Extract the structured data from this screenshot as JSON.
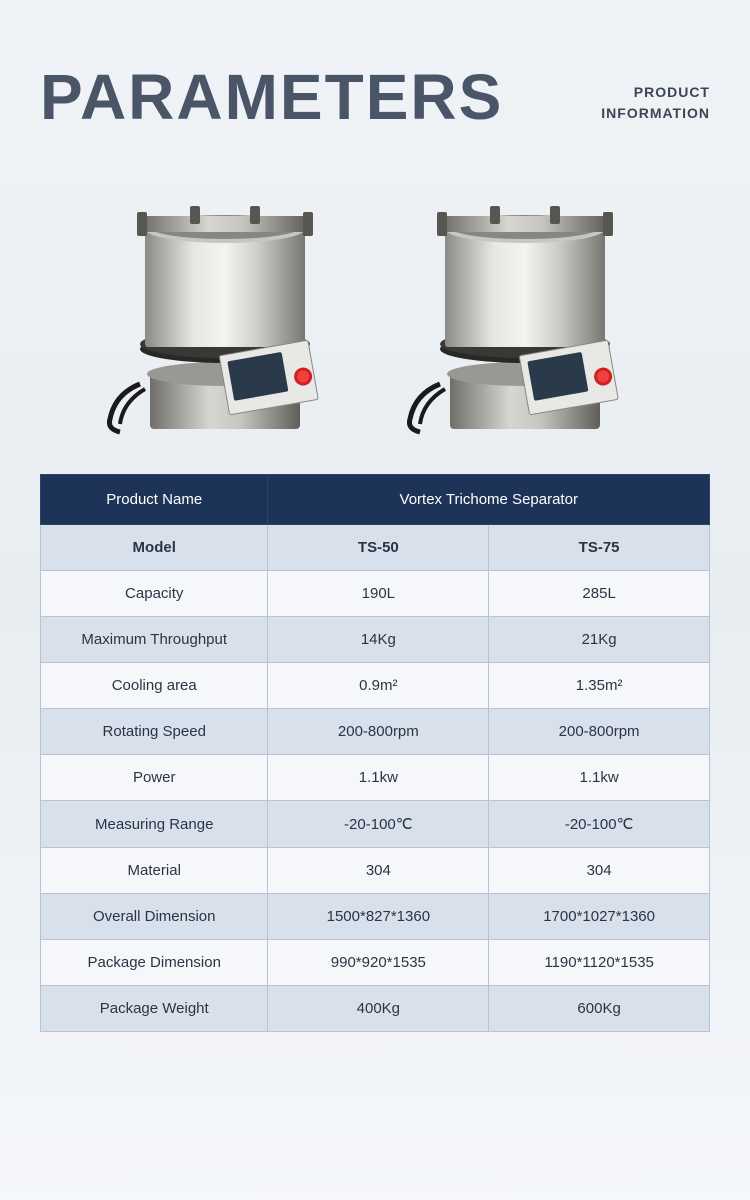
{
  "header": {
    "title": "PARAMETERS",
    "subtitle_line1": "PRODUCT",
    "subtitle_line2": "INFORMATION"
  },
  "table": {
    "header": {
      "label": "Product Name",
      "value": "Vortex Trichome Separator"
    },
    "colors": {
      "header_bg": "#1d3458",
      "header_text": "#ffffff",
      "row_even_bg": "#d8e0ec",
      "row_odd_bg": "#f5f7fa",
      "border": "#b8c2d0",
      "text": "#2a3544"
    },
    "rows": [
      {
        "label": "Model",
        "col1": "TS-50",
        "col2": "TS-75",
        "bold": true
      },
      {
        "label": "Capacity",
        "col1": "190L",
        "col2": "285L"
      },
      {
        "label": "Maximum Throughput",
        "col1": "14Kg",
        "col2": "21Kg"
      },
      {
        "label": "Cooling area",
        "col1": "0.9m²",
        "col2": "1.35m²"
      },
      {
        "label": "Rotating Speed",
        "col1": "200-800rpm",
        "col2": "200-800rpm"
      },
      {
        "label": "Power",
        "col1": "1.1kw",
        "col2": "1.1kw"
      },
      {
        "label": "Measuring Range",
        "col1": "-20-100℃",
        "col2": "-20-100℃"
      },
      {
        "label": "Material",
        "col1": "304",
        "col2": "304"
      },
      {
        "label": "Overall Dimension",
        "col1": "1500*827*1360",
        "col2": "1700*1027*1360"
      },
      {
        "label": "Package Dimension",
        "col1": "990*920*1535",
        "col2": "1190*1120*1535"
      },
      {
        "label": "Package Weight",
        "col1": "400Kg",
        "col2": "600Kg"
      }
    ]
  }
}
